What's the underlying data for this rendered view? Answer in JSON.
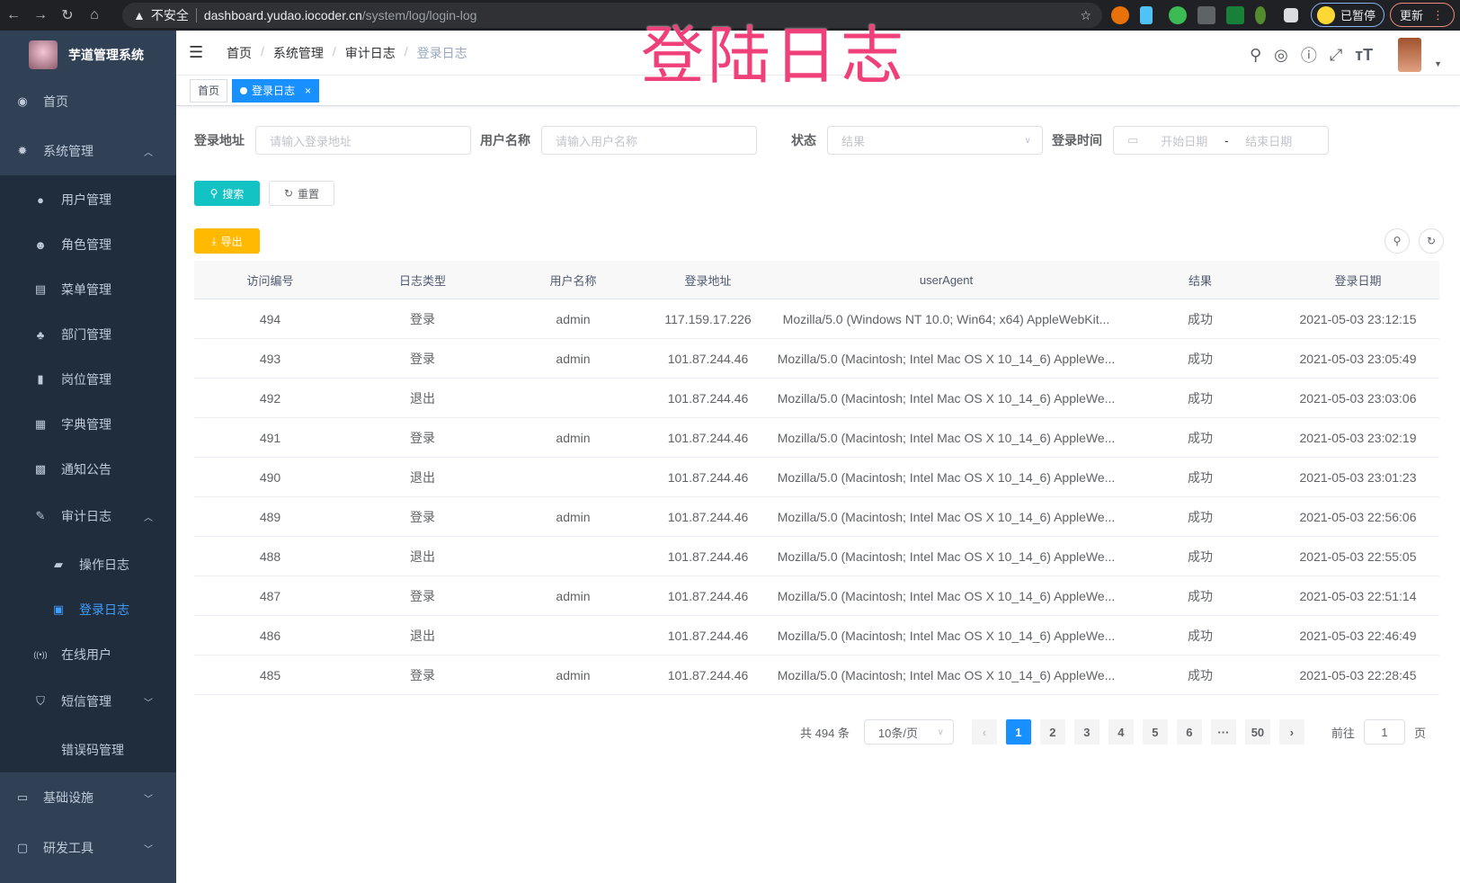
{
  "browser": {
    "warning": "不安全",
    "url_host": "dashboard.yudao.iocoder.cn",
    "url_path": "/system/log/login-log",
    "paused": "已暂停",
    "update": "更新"
  },
  "overlay_title": "登陆日志",
  "sidebar": {
    "app_name": "芋道管理系统",
    "items": [
      {
        "label": "首页",
        "icon": "dashboard-icon",
        "level": 0
      },
      {
        "label": "系统管理",
        "icon": "gear-icon",
        "level": 0,
        "arrow": "up"
      },
      {
        "label": "用户管理",
        "icon": "user-icon",
        "level": 1
      },
      {
        "label": "角色管理",
        "icon": "role-icon",
        "level": 1
      },
      {
        "label": "菜单管理",
        "icon": "menu-icon",
        "level": 1
      },
      {
        "label": "部门管理",
        "icon": "tree-icon",
        "level": 1
      },
      {
        "label": "岗位管理",
        "icon": "post-icon",
        "level": 1
      },
      {
        "label": "字典管理",
        "icon": "dict-icon",
        "level": 1
      },
      {
        "label": "通知公告",
        "icon": "message-icon",
        "level": 1
      },
      {
        "label": "审计日志",
        "icon": "edit-icon",
        "level": 1,
        "arrow": "up"
      },
      {
        "label": "操作日志",
        "icon": "form-icon",
        "level": 2
      },
      {
        "label": "登录日志",
        "icon": "logininfor-icon",
        "level": 2,
        "active": true
      },
      {
        "label": "在线用户",
        "icon": "online-icon",
        "level": 1
      },
      {
        "label": "短信管理",
        "icon": "shield-icon",
        "level": 1,
        "arrow": "down"
      },
      {
        "label": "错误码管理",
        "icon": "code-icon",
        "level": 1
      },
      {
        "label": "基础设施",
        "icon": "monitor-icon",
        "level": 0,
        "arrow": "down"
      },
      {
        "label": "研发工具",
        "icon": "tool-icon",
        "level": 0,
        "arrow": "down"
      }
    ]
  },
  "breadcrumb": [
    "首页",
    "系统管理",
    "审计日志",
    "登录日志"
  ],
  "tags": {
    "home": "首页",
    "current": "登录日志",
    "close": "×"
  },
  "filters": {
    "ip_label": "登录地址",
    "ip_placeholder": "请输入登录地址",
    "user_label": "用户名称",
    "user_placeholder": "请输入用户名称",
    "status_label": "状态",
    "status_placeholder": "结果",
    "time_label": "登录时间",
    "start_placeholder": "开始日期",
    "range_sep": "-",
    "end_placeholder": "结束日期"
  },
  "buttons": {
    "search": "搜索",
    "reset": "重置",
    "export": "导出"
  },
  "table": {
    "headers": [
      "访问编号",
      "日志类型",
      "用户名称",
      "登录地址",
      "userAgent",
      "结果",
      "登录日期"
    ],
    "rows": [
      [
        "494",
        "登录",
        "admin",
        "117.159.17.226",
        "Mozilla/5.0 (Windows NT 10.0; Win64; x64) AppleWebKit...",
        "成功",
        "2021-05-03 23:12:15"
      ],
      [
        "493",
        "登录",
        "admin",
        "101.87.244.46",
        "Mozilla/5.0 (Macintosh; Intel Mac OS X 10_14_6) AppleWe...",
        "成功",
        "2021-05-03 23:05:49"
      ],
      [
        "492",
        "退出",
        "",
        "101.87.244.46",
        "Mozilla/5.0 (Macintosh; Intel Mac OS X 10_14_6) AppleWe...",
        "成功",
        "2021-05-03 23:03:06"
      ],
      [
        "491",
        "登录",
        "admin",
        "101.87.244.46",
        "Mozilla/5.0 (Macintosh; Intel Mac OS X 10_14_6) AppleWe...",
        "成功",
        "2021-05-03 23:02:19"
      ],
      [
        "490",
        "退出",
        "",
        "101.87.244.46",
        "Mozilla/5.0 (Macintosh; Intel Mac OS X 10_14_6) AppleWe...",
        "成功",
        "2021-05-03 23:01:23"
      ],
      [
        "489",
        "登录",
        "admin",
        "101.87.244.46",
        "Mozilla/5.0 (Macintosh; Intel Mac OS X 10_14_6) AppleWe...",
        "成功",
        "2021-05-03 22:56:06"
      ],
      [
        "488",
        "退出",
        "",
        "101.87.244.46",
        "Mozilla/5.0 (Macintosh; Intel Mac OS X 10_14_6) AppleWe...",
        "成功",
        "2021-05-03 22:55:05"
      ],
      [
        "487",
        "登录",
        "admin",
        "101.87.244.46",
        "Mozilla/5.0 (Macintosh; Intel Mac OS X 10_14_6) AppleWe...",
        "成功",
        "2021-05-03 22:51:14"
      ],
      [
        "486",
        "退出",
        "",
        "101.87.244.46",
        "Mozilla/5.0 (Macintosh; Intel Mac OS X 10_14_6) AppleWe...",
        "成功",
        "2021-05-03 22:46:49"
      ],
      [
        "485",
        "登录",
        "admin",
        "101.87.244.46",
        "Mozilla/5.0 (Macintosh; Intel Mac OS X 10_14_6) AppleWe...",
        "成功",
        "2021-05-03 22:28:45"
      ]
    ]
  },
  "pagination": {
    "total": "共 494 条",
    "page_size": "10条/页",
    "pages": [
      "1",
      "2",
      "3",
      "4",
      "5",
      "6",
      "···",
      "50"
    ],
    "current": "1",
    "goto_label": "前往",
    "goto_value": "1",
    "goto_suffix": "页"
  },
  "colors": {
    "sidebar": "#304156",
    "submenu": "#1f2d3d",
    "primary": "#1890ff",
    "search": "#13c2c2",
    "export": "#ffba00",
    "overlay": "#f0407a"
  }
}
